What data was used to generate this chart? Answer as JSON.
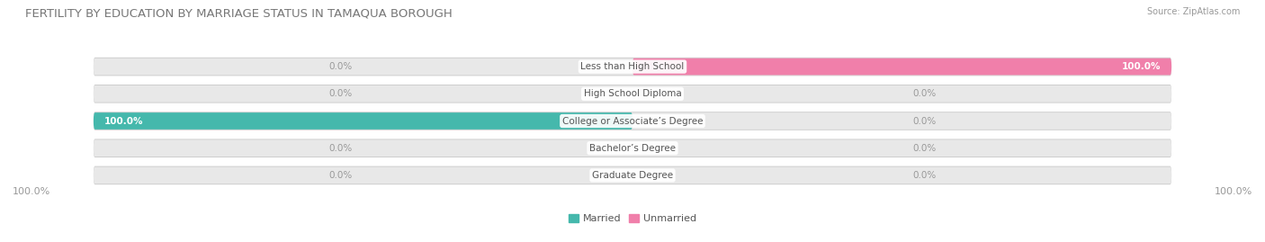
{
  "title": "FERTILITY BY EDUCATION BY MARRIAGE STATUS IN TAMAQUA BOROUGH",
  "source": "Source: ZipAtlas.com",
  "categories": [
    "Less than High School",
    "High School Diploma",
    "College or Associate’s Degree",
    "Bachelor’s Degree",
    "Graduate Degree"
  ],
  "married": [
    0.0,
    0.0,
    100.0,
    0.0,
    0.0
  ],
  "unmarried": [
    100.0,
    0.0,
    0.0,
    0.0,
    0.0
  ],
  "married_color": "#45b8ac",
  "unmarried_color": "#f07faa",
  "bar_bg_color": "#e8e8e8",
  "bar_bg_border": "#d8d8d8",
  "bar_height": 0.62,
  "married_label": "Married",
  "unmarried_label": "Unmarried",
  "x_min": -100,
  "x_max": 100,
  "fig_bg_color": "#ffffff",
  "title_fontsize": 9.5,
  "label_fontsize": 7.5,
  "cat_fontsize": 7.5,
  "axis_label_fontsize": 8,
  "source_fontsize": 7,
  "value_color_on_bar": "#ffffff",
  "value_color_off_bar": "#999999",
  "cat_label_color": "#555555"
}
